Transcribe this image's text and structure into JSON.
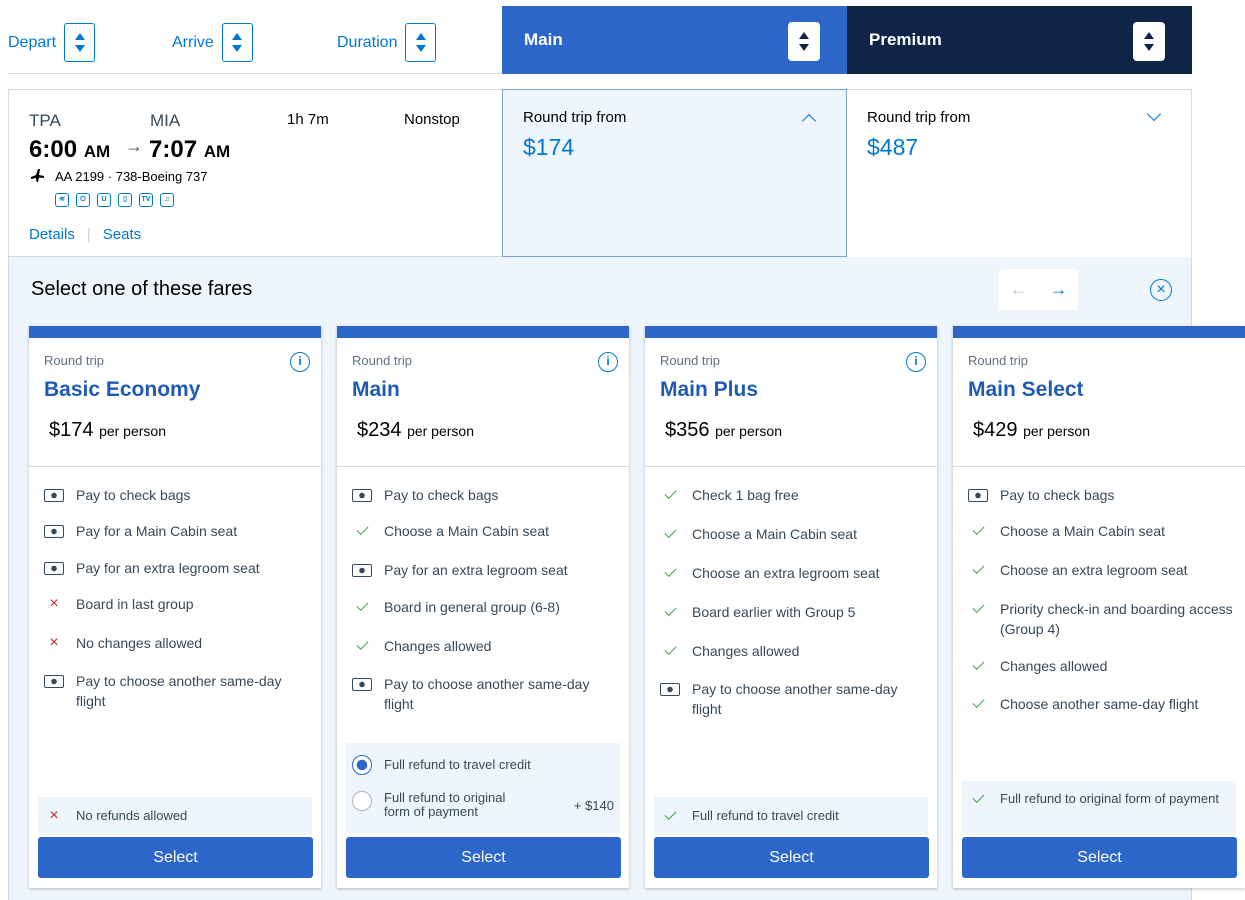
{
  "sort": {
    "depart_label": "Depart",
    "arrive_label": "Arrive",
    "duration_label": "Duration"
  },
  "cabins": {
    "main_label": "Main",
    "premium_label": "Premium"
  },
  "flight": {
    "origin": "TPA",
    "destination": "MIA",
    "depart_time": "6:00",
    "depart_ampm": "AM",
    "arrive_time": "7:07",
    "arrive_ampm": "AM",
    "duration": "1h 7m",
    "stops": "Nonstop",
    "equipment": "AA 2199 · 738-Boeing 737",
    "amenities": [
      "wifi-icon",
      "power-icon",
      "usb-icon",
      "phone-icon",
      "tv-icon",
      "music-icon"
    ],
    "details_link": "Details",
    "seats_link": "Seats"
  },
  "prices": {
    "main": {
      "label": "Round trip from",
      "amount": "$174"
    },
    "premium": {
      "label": "Round trip from",
      "amount": "$487"
    }
  },
  "fares_panel": {
    "title": "Select one of these fares",
    "cards": [
      {
        "trip": "Round trip",
        "name": "Basic Economy",
        "price": "$174",
        "per": "per person",
        "features": [
          {
            "icon": "fee",
            "text": "Pay to check bags"
          },
          {
            "icon": "fee",
            "text": "Pay for a Main Cabin seat"
          },
          {
            "icon": "fee",
            "text": "Pay for an extra legroom seat"
          },
          {
            "icon": "cross",
            "text": "Board in last group"
          },
          {
            "icon": "cross",
            "text": "No changes allowed"
          },
          {
            "icon": "fee",
            "text": "Pay to choose another same-day flight"
          }
        ],
        "refund": "No refunds allowed",
        "button": "Select"
      },
      {
        "trip": "Round trip",
        "name": "Main",
        "price": "$234",
        "per": "per person",
        "features": [
          {
            "icon": "fee",
            "text": "Pay to check bags"
          },
          {
            "icon": "check",
            "text": "Choose a Main Cabin seat"
          },
          {
            "icon": "fee",
            "text": "Pay for an extra legroom seat"
          },
          {
            "icon": "check",
            "text": "Board in general group (6-8)"
          },
          {
            "icon": "check",
            "text": "Changes allowed"
          },
          {
            "icon": "fee",
            "text": "Pay to choose another same-day flight"
          }
        ],
        "refund_option_1": "Full refund to travel credit",
        "refund_option_2": "Full refund to original form of payment",
        "refund_option_2_price": "+ $140",
        "button": "Select"
      },
      {
        "trip": "Round trip",
        "name": "Main Plus",
        "price": "$356",
        "per": "per person",
        "features": [
          {
            "icon": "check",
            "text": "Check 1 bag free"
          },
          {
            "icon": "check",
            "text": "Choose a Main Cabin seat"
          },
          {
            "icon": "check",
            "text": "Choose an extra legroom seat"
          },
          {
            "icon": "check",
            "text": "Board earlier with Group 5"
          },
          {
            "icon": "check",
            "text": "Changes allowed"
          },
          {
            "icon": "fee",
            "text": "Pay to choose another same-day flight"
          }
        ],
        "refund": "Full refund to travel credit",
        "button": "Select"
      },
      {
        "trip": "Round trip",
        "name": "Main Select",
        "price": "$429",
        "per": "per person",
        "features": [
          {
            "icon": "fee",
            "text": "Pay to check bags"
          },
          {
            "icon": "check",
            "text": "Choose a Main Cabin seat"
          },
          {
            "icon": "check",
            "text": "Choose an extra legroom seat"
          },
          {
            "icon": "check",
            "text": "Priority check-in and boarding access (Group 4)"
          },
          {
            "icon": "check",
            "text": "Changes allowed"
          },
          {
            "icon": "check",
            "text": "Choose another same-day flight"
          }
        ],
        "refund": "Full refund to original form of payment",
        "button": "Select"
      }
    ]
  }
}
